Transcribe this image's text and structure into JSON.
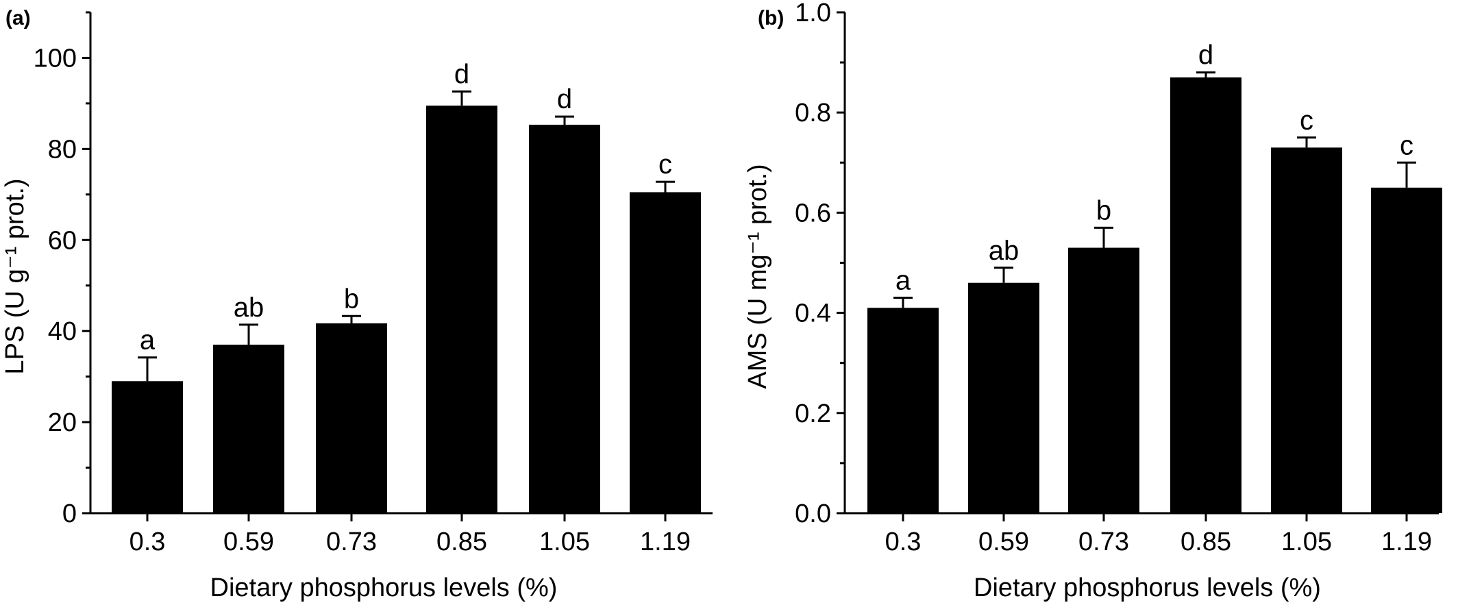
{
  "chart_data": [
    {
      "panel_label": "(a)",
      "type": "bar",
      "categories": [
        "0.3",
        "0.59",
        "0.73",
        "0.85",
        "1.05",
        "1.19"
      ],
      "values": [
        29,
        37,
        41.7,
        89.5,
        85.3,
        70.5
      ],
      "errors": [
        5.2,
        4.4,
        1.6,
        3.1,
        1.8,
        2.3
      ],
      "significance": [
        "a",
        "ab",
        "b",
        "d",
        "d",
        "c"
      ],
      "xlabel": "Dietary phosphorus levels (%)",
      "ylabel": "LPS (U g⁻¹ prot.)",
      "ylim": [
        0,
        110
      ],
      "yticks": [
        0,
        20,
        40,
        60,
        80,
        100
      ],
      "ytick_labels": [
        "0",
        "20",
        "40",
        "60",
        "80",
        "100"
      ],
      "bar_color": "#000000",
      "grid": false
    },
    {
      "panel_label": "(b)",
      "type": "bar",
      "categories": [
        "0.3",
        "0.59",
        "0.73",
        "0.85",
        "1.05",
        "1.19"
      ],
      "values": [
        0.41,
        0.46,
        0.53,
        0.87,
        0.73,
        0.65
      ],
      "errors": [
        0.02,
        0.03,
        0.04,
        0.01,
        0.02,
        0.05
      ],
      "significance": [
        "a",
        "ab",
        "b",
        "d",
        "c",
        "c"
      ],
      "xlabel": "Dietary phosphorus levels (%)",
      "ylabel": "AMS (U mg⁻¹ prot.)",
      "ylim": [
        0,
        1.0
      ],
      "yticks": [
        0,
        0.2,
        0.4,
        0.6,
        0.8,
        1.0
      ],
      "ytick_labels": [
        "0.0",
        "0.2",
        "0.4",
        "0.6",
        "0.8",
        "1.0"
      ],
      "bar_color": "#000000",
      "grid": false
    }
  ]
}
